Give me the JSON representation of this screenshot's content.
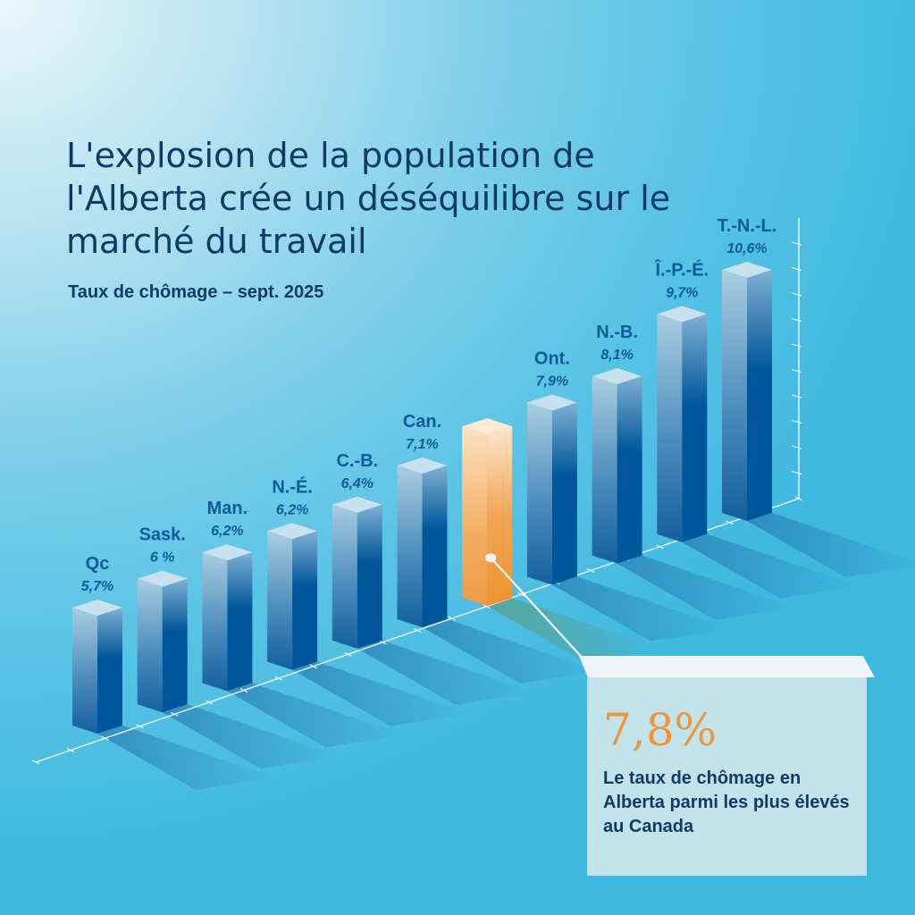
{
  "header": {
    "title": "L'explosion de la population de l'Alberta crée un déséquilibre sur le marché du travail",
    "subtitle": "Taux de chômage – sept. 2025"
  },
  "callout": {
    "value": "7,8%",
    "text": "Le taux de chômage en Alberta parmi les plus élevés au Canada"
  },
  "colors": {
    "title": "#0f3a66",
    "bar_blue_dark": "#00569a",
    "bar_blue_light": "#a9cde0",
    "highlight_orange": "#f0963a",
    "label_blue": "#0e5a9a"
  },
  "chart_data": {
    "type": "bar",
    "title": "Taux de chômage – sept. 2025",
    "xlabel": "",
    "ylabel": "",
    "unit": "%",
    "ylim": [
      0,
      11
    ],
    "categories": [
      "Qc",
      "Sask.",
      "Man.",
      "N.-É.",
      "C.-B.",
      "Can.",
      "Alb.",
      "Ont.",
      "N.-B.",
      "Î.-P.-É.",
      "T.-N.-L."
    ],
    "values": [
      5.7,
      6.0,
      6.2,
      6.2,
      6.4,
      7.1,
      7.8,
      7.9,
      8.1,
      9.7,
      10.6
    ],
    "value_labels": [
      "5,7%",
      "6 %",
      "6,2%",
      "6,2%",
      "6,4%",
      "7,1%",
      "",
      "7,9%",
      "8,1%",
      "9,7%",
      "10,6%"
    ],
    "category_labels": [
      "Qc",
      "Sask.",
      "Man.",
      "N.-É.",
      "C.-B.",
      "Can.",
      "",
      "Ont.",
      "N.-B.",
      "Î.-P.-É.",
      "T.-N.-L."
    ],
    "highlight": "Alb.",
    "grid": false,
    "legend": "none"
  }
}
